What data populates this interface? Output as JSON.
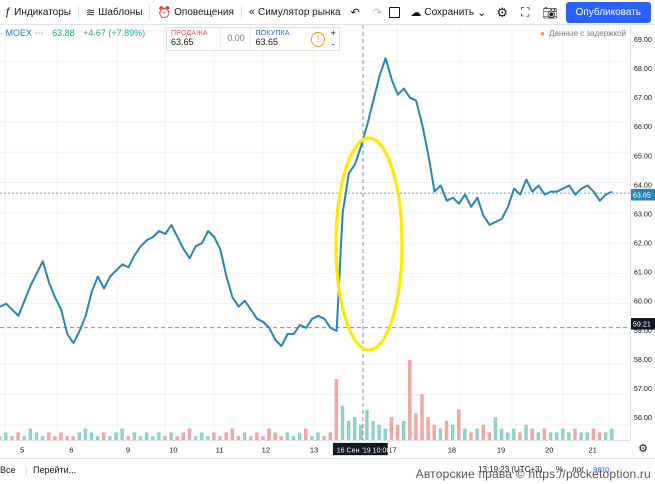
{
  "toolbar": {
    "indicators": "Индикаторы",
    "templates": "Шаблоны",
    "alerts": "Оповещения",
    "replay": "Симулятор рынка",
    "save": "Сохранить",
    "publish": "Опубликовать"
  },
  "legend": {
    "symbol": "MOEX",
    "price": "63.88",
    "change": "+4.67 (+7.89%)"
  },
  "order_panel": {
    "sell_label": "ПРОДАЖА",
    "sell_price": "63.65",
    "spread": "0.00",
    "buy_label": "ПОКУПКА",
    "buy_price": "63.65",
    "plus": "+",
    "minus": "-"
  },
  "delay_notice": "Данные с задержкой",
  "price_labels": {
    "current": "63.65",
    "crosshair": "59.21"
  },
  "crosshair_time": "16 Сен '19   10:00",
  "bottom": {
    "all": "Все",
    "goto": "Перейти...",
    "clock": "13:19:23 (UTC+3)",
    "percent": "%",
    "log": "лог",
    "auto": "авто",
    "watermark": "Авторские права © https://pocketoption.ru"
  },
  "chart_data": {
    "type": "line",
    "series": [
      {
        "values": [
          59.9,
          60.0,
          59.8,
          59.6,
          60.1,
          60.6,
          61.0,
          61.4,
          60.7,
          60.2,
          59.8,
          59.0,
          58.7,
          59.1,
          59.6,
          60.4,
          60.9,
          60.5,
          60.9,
          61.1,
          61.3,
          61.2,
          61.6,
          61.9,
          62.1,
          62.2,
          62.4,
          62.3,
          62.6,
          62.2,
          61.8,
          61.5,
          61.9,
          62.0,
          62.4,
          62.2,
          61.8,
          60.9,
          60.2,
          59.9,
          60.1,
          59.8,
          59.5,
          59.4,
          59.2,
          58.8,
          58.6,
          59.0,
          59.0,
          59.3,
          59.2,
          59.5,
          59.6,
          59.5,
          59.2,
          59.1,
          63.0,
          64.3,
          64.6,
          65.2,
          65.9,
          66.7,
          67.5,
          68.1,
          67.4,
          66.9,
          67.1,
          66.8,
          66.7,
          65.9,
          64.9,
          63.7,
          63.9,
          63.4,
          63.5,
          63.3,
          63.6,
          63.2,
          63.5,
          62.9,
          62.6,
          62.7,
          62.8,
          63.2,
          63.8,
          63.6,
          64.1,
          63.7,
          63.9,
          63.6,
          63.7,
          63.7,
          63.8,
          63.9,
          63.6,
          63.8,
          63.9,
          63.7,
          63.4,
          63.6,
          63.7
        ],
        "volumes": [
          1,
          2,
          1,
          2,
          1,
          3,
          2,
          1,
          2,
          1,
          2,
          1,
          1,
          2,
          3,
          2,
          1,
          2,
          1,
          2,
          3,
          1,
          2,
          1,
          2,
          1,
          2,
          1,
          2,
          1,
          2,
          3,
          1,
          2,
          1,
          2,
          1,
          2,
          3,
          1,
          2,
          1,
          2,
          1,
          3,
          2,
          1,
          2,
          1,
          2,
          3,
          1,
          2,
          1,
          2,
          16,
          9,
          5,
          6,
          4,
          8,
          5,
          4,
          3,
          6,
          4,
          5,
          21,
          7,
          12,
          6,
          4,
          3,
          5,
          4,
          8,
          3,
          2,
          3,
          4,
          2,
          6,
          3,
          2,
          3,
          2,
          4,
          3,
          2,
          3,
          2,
          2,
          3,
          2,
          3,
          2,
          2,
          3,
          2,
          2,
          3
        ]
      }
    ],
    "x_ticks": [
      "5",
      "6",
      "9",
      "10",
      "11",
      "12",
      "13",
      "17",
      "18",
      "19",
      "20",
      "21"
    ],
    "y_ticks": [
      "56.00",
      "57.00",
      "58.00",
      "59.00",
      "60.00",
      "61.00",
      "62.00",
      "63.00",
      "64.00",
      "65.00",
      "66.00",
      "67.00",
      "68.00",
      "69.00"
    ],
    "ylim": [
      55.5,
      69.2
    ],
    "grid": true,
    "highlight_ellipse": "around the 16 Sep jump",
    "colors": {
      "line": "#2a84b8",
      "volume_up": "#8fd3c8",
      "volume_down": "#f3a6a4",
      "highlight": "#ffeb00",
      "crosshair": "#8c8f99"
    }
  }
}
